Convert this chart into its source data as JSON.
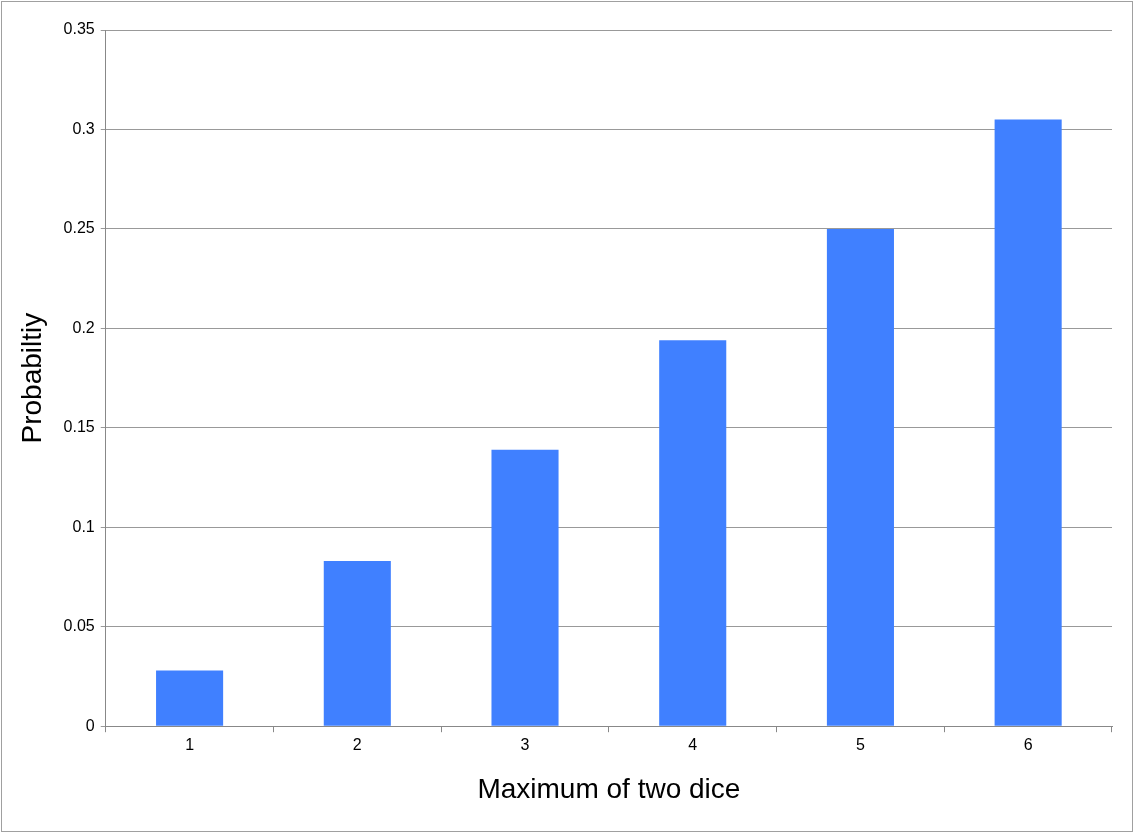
{
  "chart_data": {
    "type": "bar",
    "xlabel": "Maximum of two dice",
    "ylabel": "Probabiltiy",
    "categories": [
      "1",
      "2",
      "3",
      "4",
      "5",
      "6"
    ],
    "values": [
      0.028,
      0.083,
      0.139,
      0.194,
      0.25,
      0.305
    ],
    "color": "#4080ff",
    "ylim": [
      0,
      0.35
    ],
    "yticks": [
      0,
      0.05,
      0.1,
      0.15,
      0.2,
      0.25,
      0.3,
      0.35
    ],
    "grid": "y",
    "legend": false
  }
}
